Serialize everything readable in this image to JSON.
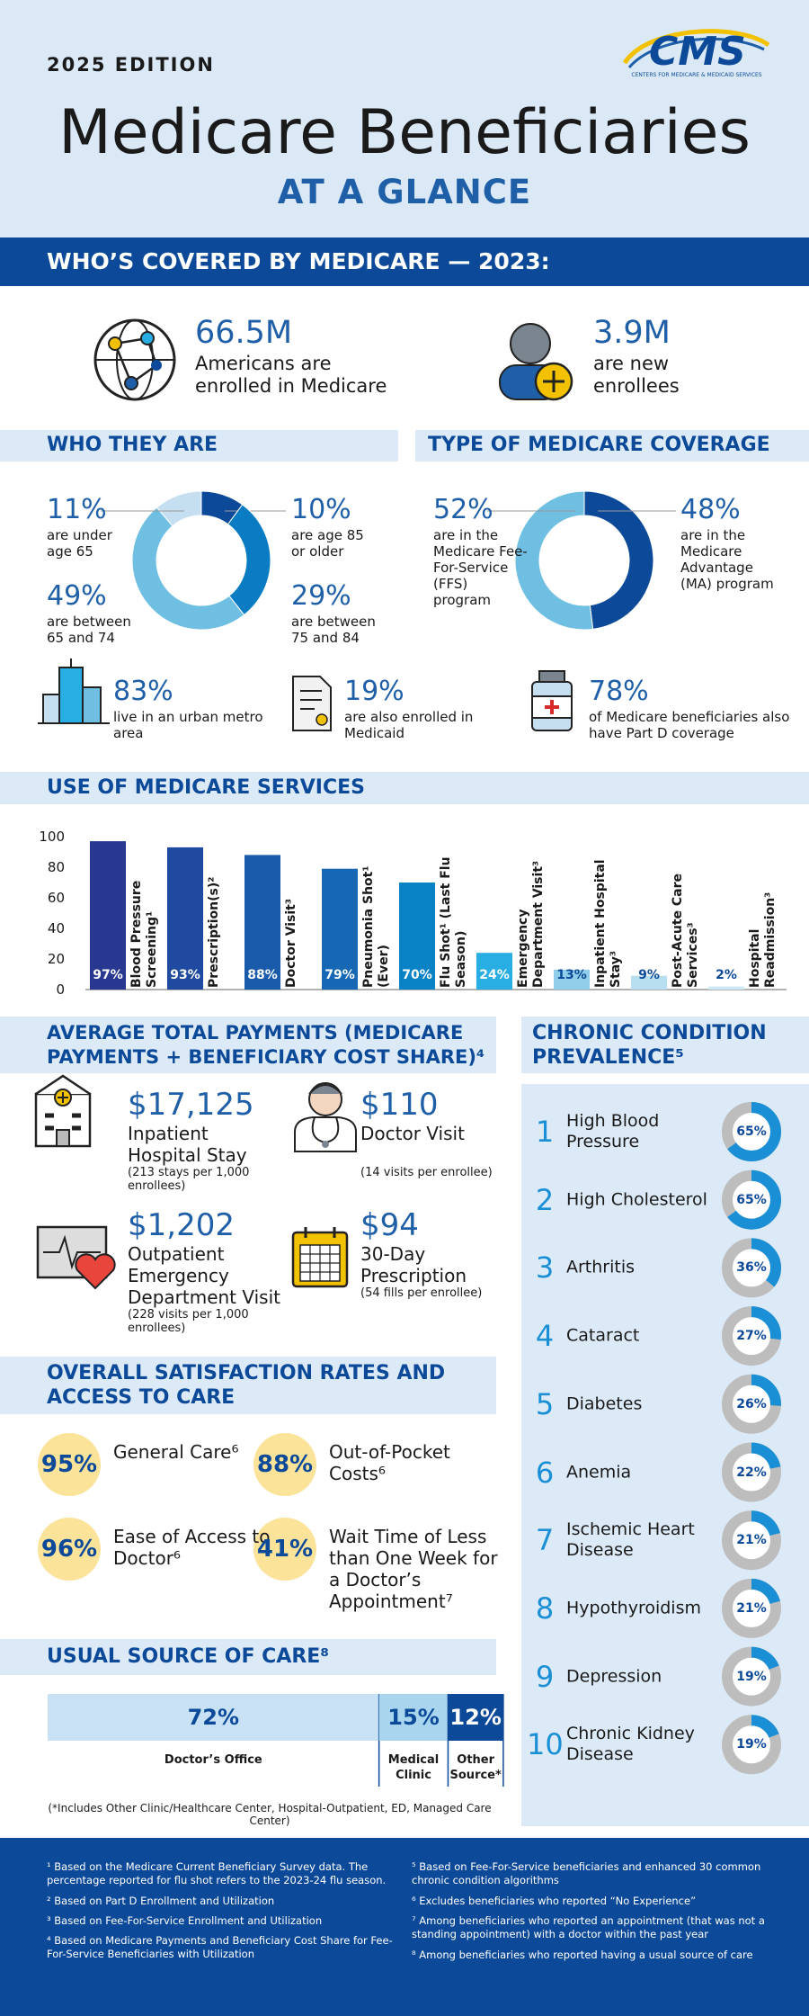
{
  "header": {
    "edition": "2025 EDITION",
    "logo": "CMS",
    "logo_tagline": "CENTERS FOR MEDICARE & MEDICAID SERVICES",
    "title": "Medicare Beneficiaries",
    "subtitle": "AT A GLANCE"
  },
  "covered": {
    "heading": "WHO’S COVERED BY MEDICARE — 2023:",
    "stats": [
      {
        "value": "66.5M",
        "text": "Americans are enrolled in Medicare"
      },
      {
        "value": "3.9M",
        "text": "are new enrollees"
      }
    ]
  },
  "who_they_are": {
    "heading": "WHO THEY ARE",
    "chart": {
      "type": "donut",
      "values": [
        10,
        29,
        49,
        11
      ],
      "value_labels": [
        "10%",
        "29%",
        "49%",
        "11%"
      ],
      "labels": [
        "are age 85 or older",
        "are between 75 and 84",
        "are between 65 and 74",
        "are under age 65"
      ],
      "colors": [
        "#0c4a99",
        "#0a7cc4",
        "#6fbfe3",
        "#c5dff1"
      ]
    }
  },
  "coverage": {
    "heading": "TYPE OF MEDICARE COVERAGE",
    "chart": {
      "type": "donut",
      "values": [
        48,
        52
      ],
      "value_labels": [
        "48%",
        "52%"
      ],
      "labels": [
        "are in the Medicare Advantage (MA) program",
        "are in the Medicare Fee-For-Service (FFS) program"
      ],
      "colors": [
        "#0c4a99",
        "#6fbfe3"
      ]
    }
  },
  "facts": [
    {
      "value": "83%",
      "text": "live in an urban metro area"
    },
    {
      "value": "19%",
      "text": "are also enrolled in Medicaid"
    },
    {
      "value": "78%",
      "text": "of Medicare beneficiaries also have Part D coverage"
    }
  ],
  "services": {
    "heading": "USE OF MEDICARE SERVICES",
    "chart": {
      "type": "bar",
      "categories": [
        "Blood Pressure Screening¹",
        "Prescription(s)²",
        "Doctor Visit³",
        "Pneumonia Shot¹ (Ever)",
        "Flu Shot¹ (Last Flu Season)",
        "Emergency Department Visit³",
        "Inpatient Hospital Stay³",
        "Post-Acute Care Services³",
        "Hospital Readmission³"
      ],
      "values": [
        97,
        93,
        88,
        79,
        70,
        24,
        13,
        9,
        2
      ],
      "value_labels": [
        "97%",
        "93%",
        "88%",
        "79%",
        "70%",
        "24%",
        "13%",
        "9%",
        "2%"
      ],
      "colors": [
        "#283891",
        "#1f4aa0",
        "#1a5aab",
        "#1668b4",
        "#0a82c6",
        "#29aee3",
        "#8fcde8",
        "#b8dff0",
        "#cde9f5"
      ],
      "ylim": [
        0,
        100
      ],
      "yticks": [
        0,
        20,
        40,
        60,
        80,
        100
      ]
    }
  },
  "payments": {
    "heading": "AVERAGE TOTAL PAYMENTS (MEDICARE PAYMENTS + BENEFICIARY COST SHARE)⁴",
    "items": [
      {
        "amount": "$17,125",
        "label": "Inpatient Hospital Stay",
        "note": "(213 stays per 1,000 enrollees)"
      },
      {
        "amount": "$110",
        "label": "Doctor Visit",
        "note": "(14 visits per enrollee)"
      },
      {
        "amount": "$1,202",
        "label": "Outpatient Emergency Department Visit",
        "note": "(228 visits per 1,000 enrollees)"
      },
      {
        "amount": "$94",
        "label": "30-Day Prescription",
        "note": "(54 fills per enrollee)"
      }
    ]
  },
  "satisfaction": {
    "heading": "OVERALL SATISFACTION RATES AND ACCESS TO CARE",
    "items": [
      {
        "value": "95%",
        "label": "General Care⁶"
      },
      {
        "value": "88%",
        "label": "Out-of-Pocket Costs⁶"
      },
      {
        "value": "96%",
        "label": "Ease of Access to Doctor⁶"
      },
      {
        "value": "41%",
        "label": "Wait Time of Less than One Week for a Doctor’s Appointment⁷"
      }
    ]
  },
  "usual_source": {
    "heading": "USUAL SOURCE OF CARE⁸",
    "chart": {
      "type": "stacked-bar",
      "categories": [
        "Doctor’s Office",
        "Medical Clinic",
        "Other Source*"
      ],
      "values": [
        72,
        15,
        12
      ],
      "value_labels": [
        "72%",
        "15%",
        "12%"
      ],
      "colors": [
        "#c8e1f4",
        "#a9d6ee",
        "#0c4a99"
      ]
    },
    "note": "(*Includes Other Clinic/Healthcare Center, Hospital-Outpatient, ED, Managed Care Center)"
  },
  "chronic": {
    "heading": "CHRONIC CONDITION PREVALENCE⁵",
    "chart": {
      "type": "donut-list",
      "ranks": [
        1,
        2,
        3,
        4,
        5,
        6,
        7,
        8,
        9,
        10
      ],
      "categories": [
        "High Blood Pressure",
        "High Cholesterol",
        "Arthritis",
        "Cataract",
        "Diabetes",
        "Anemia",
        "Ischemic Heart Disease",
        "Hypothyroidism",
        "Depression",
        "Chronic Kidney Disease"
      ],
      "values": [
        65,
        65,
        36,
        27,
        26,
        22,
        21,
        21,
        19,
        19
      ],
      "value_labels": [
        "65%",
        "65%",
        "36%",
        "27%",
        "26%",
        "22%",
        "21%",
        "21%",
        "19%",
        "19%"
      ]
    }
  },
  "footnotes": [
    "¹ Based on the Medicare Current Beneficiary Survey data. The percentage reported for flu shot refers to the 2023-24 flu season.",
    "² Based on Part D Enrollment and Utilization",
    "³ Based on Fee-For-Service Enrollment and Utilization",
    "⁴ Based on Medicare Payments and Beneficiary Cost Share for Fee-For-Service Beneficiaries with Utilization",
    "⁵ Based on Fee-For-Service beneficiaries and enhanced 30 common chronic condition algorithms",
    "⁶ Excludes beneficiaries who reported “No Experience”",
    "⁷ Among beneficiaries who reported an appointment (that was not a standing appointment) with a doctor within the past year",
    "⁸ Among beneficiaries who reported having a usual source of care"
  ]
}
